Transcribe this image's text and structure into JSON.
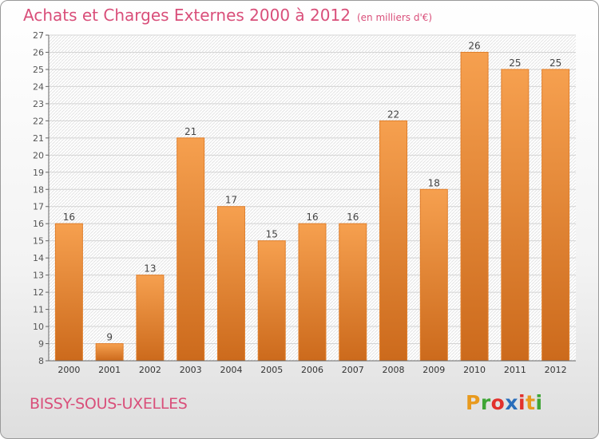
{
  "title": "Achats et Charges Externes 2000 à 2012",
  "title_unit": "(en milliers d'€)",
  "place": "BISSY-SOUS-UXELLES",
  "logo": {
    "letters": [
      "P",
      "r",
      "o",
      "x",
      "i",
      "t",
      "i"
    ],
    "colors": [
      "#e89a1e",
      "#3fa535",
      "#e2312c",
      "#2a6ebb",
      "#e2312c",
      "#e89a1e",
      "#3fa535"
    ]
  },
  "colors": {
    "bar_top": "#f6a04f",
    "bar_bottom": "#cc6a1c",
    "bar_edge": "#e07f2c",
    "accent": "#d94f7a"
  },
  "chart_data": {
    "type": "bar",
    "categories": [
      "2000",
      "2001",
      "2002",
      "2003",
      "2004",
      "2005",
      "2006",
      "2007",
      "2008",
      "2009",
      "2010",
      "2011",
      "2012"
    ],
    "values": [
      16,
      9,
      13,
      21,
      17,
      15,
      16,
      16,
      22,
      18,
      26,
      25,
      25
    ],
    "ylim": [
      8,
      27
    ],
    "yticks": [
      8,
      9,
      10,
      11,
      12,
      13,
      14,
      15,
      16,
      17,
      18,
      19,
      20,
      21,
      22,
      23,
      24,
      25,
      26,
      27
    ],
    "grid": true,
    "title": "Achats et Charges Externes 2000 à 2012",
    "xlabel": "",
    "ylabel": ""
  }
}
